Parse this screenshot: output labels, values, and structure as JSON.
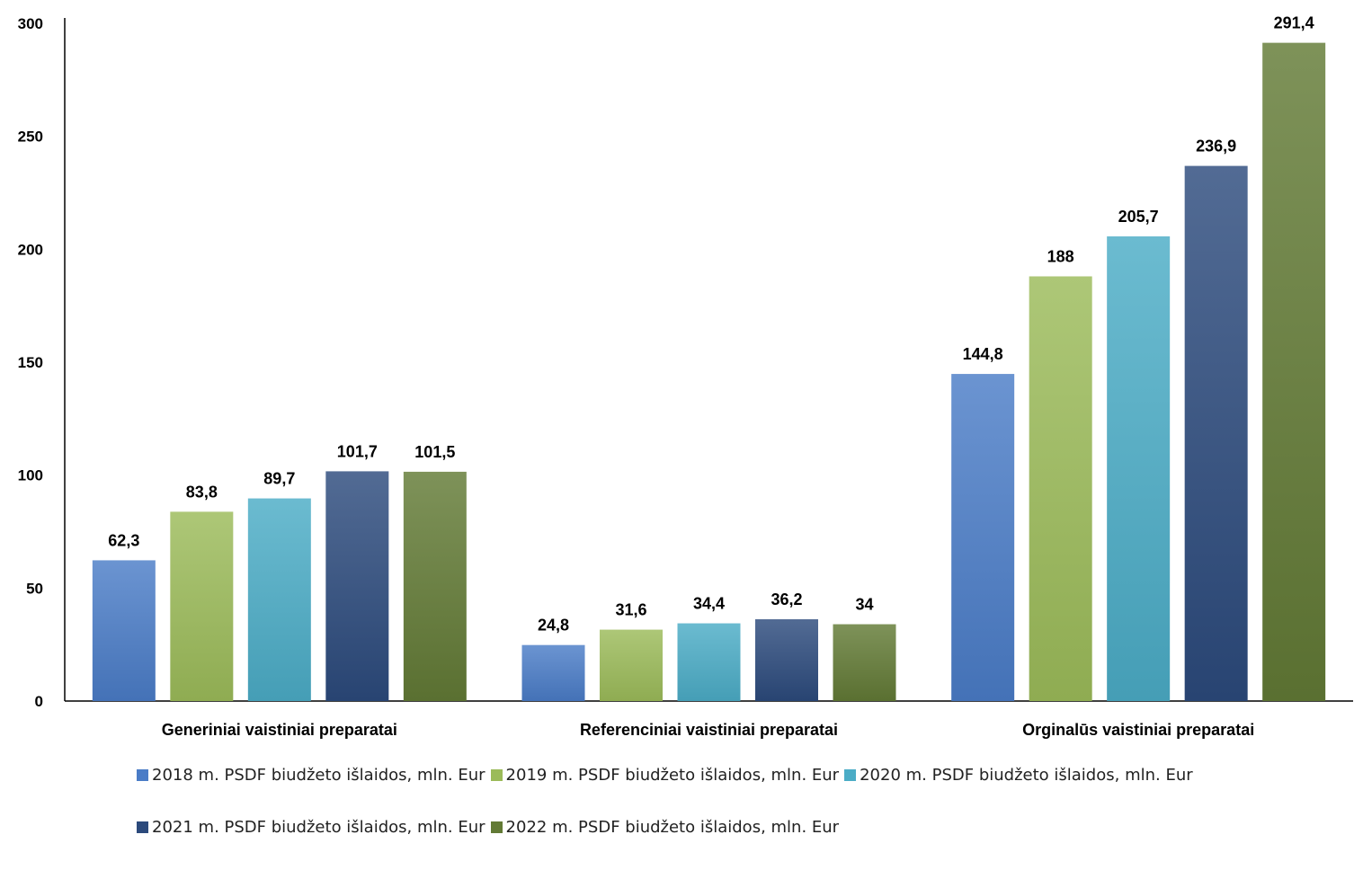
{
  "chart_data": {
    "type": "bar",
    "title": "",
    "xlabel": "",
    "ylabel": "",
    "ylim": [
      0,
      300
    ],
    "yticks": [
      "0",
      "50",
      "100",
      "150",
      "200",
      "250",
      "300"
    ],
    "grid": false,
    "legend_position": "bottom",
    "categories": [
      "Generiniai vaistiniai preparatai",
      "Referenciniai vaistiniai preparatai",
      "Orginalūs vaistiniai preparatai"
    ],
    "series": [
      {
        "name": "2018 m. PSDF biudžeto išlaidos, mln. Eur",
        "color": "#4a7cc7",
        "values": [
          62.3,
          24.8,
          144.8
        ],
        "labels": [
          "62,3",
          "24,8",
          "144,8"
        ]
      },
      {
        "name": "2019 m. PSDF biudžeto išlaidos, mln. Eur",
        "color": "#9bbb59",
        "values": [
          83.8,
          31.6,
          188
        ],
        "labels": [
          "83,8",
          "31,6",
          "188"
        ]
      },
      {
        "name": "2020 m. PSDF biudžeto išlaidos, mln. Eur",
        "color": "#4bacc6",
        "values": [
          89.7,
          34.4,
          205.7
        ],
        "labels": [
          "89,7",
          "34,4",
          "205,7"
        ]
      },
      {
        "name": "2021 m. PSDF biudžeto išlaidos, mln. Eur",
        "color": "#2c4a7c",
        "values": [
          101.7,
          36.2,
          236.9
        ],
        "labels": [
          "101,7",
          "36,2",
          "236,9"
        ]
      },
      {
        "name": "2022 m. PSDF biudžeto išlaidos, mln. Eur",
        "color": "#627a35",
        "values": [
          101.5,
          34,
          291.4
        ],
        "labels": [
          "101,5",
          "34",
          "291,4"
        ]
      }
    ]
  }
}
